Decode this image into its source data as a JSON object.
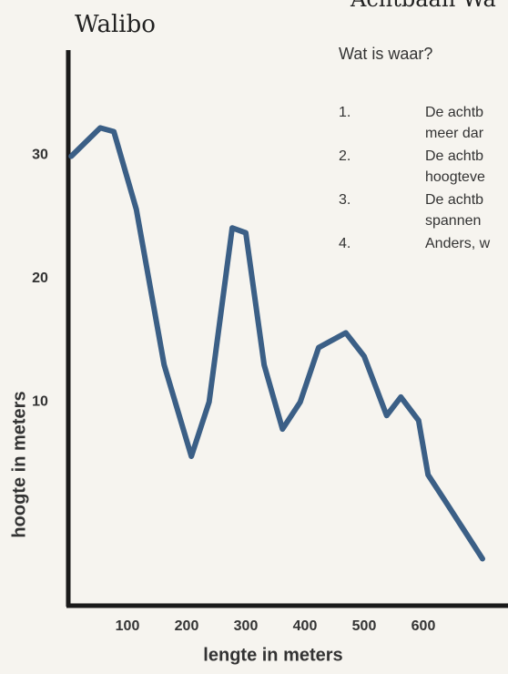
{
  "chart_data": {
    "type": "line",
    "title": "Walibo",
    "x_label": "lengte in meters",
    "y_label": "hoogte in meters",
    "xlim": [
      0,
      740
    ],
    "ylim": [
      -6.5,
      38.5
    ],
    "xticks": [
      100,
      200,
      300,
      400,
      500,
      600
    ],
    "yticks": [
      10,
      20,
      30
    ],
    "series": [
      {
        "color": "#3b5f86",
        "x": [
          5,
          54,
          77,
          115,
          162,
          208,
          238,
          277,
          300,
          331,
          362,
          392,
          423,
          469,
          500,
          538,
          562,
          592,
          608,
          638,
          669,
          700
        ],
        "values": [
          29.9,
          32.2,
          31.9,
          25.6,
          13,
          5.6,
          10,
          24.1,
          23.7,
          13,
          7.8,
          10,
          14.4,
          15.6,
          13.7,
          8.9,
          10.4,
          8.5,
          4.1,
          1.9,
          -0.4,
          -2.7
        ]
      }
    ]
  },
  "worksheet": {
    "heading": "Achtbaan Wa",
    "question": "Wat is waar?",
    "options": [
      {
        "number": "1.",
        "lines": [
          "De achtb",
          "meer dar"
        ]
      },
      {
        "number": "2.",
        "lines": [
          "De achtb",
          "hoogteve"
        ]
      },
      {
        "number": "3.",
        "lines": [
          "De achtb",
          "spannen"
        ]
      },
      {
        "number": "4.",
        "lines": [
          "Anders, w"
        ]
      }
    ]
  }
}
